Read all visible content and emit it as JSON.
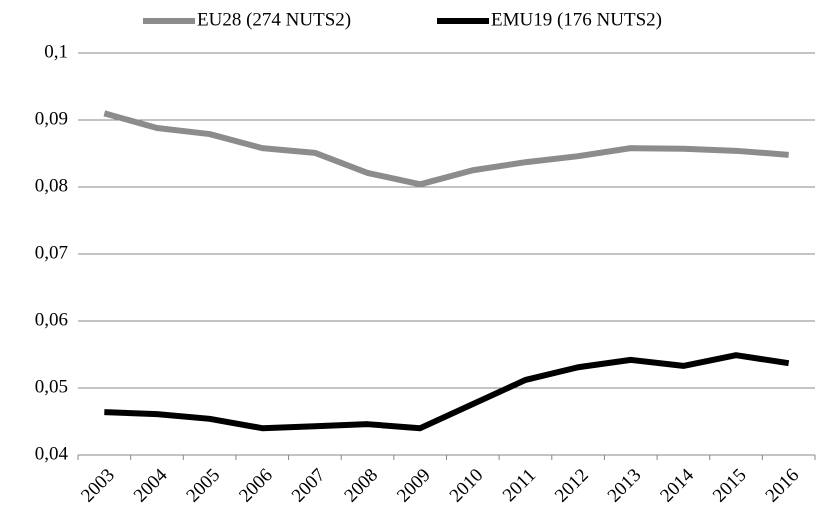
{
  "chart_data": {
    "type": "line",
    "categories": [
      "2003",
      "2004",
      "2005",
      "2006",
      "2007",
      "2008",
      "2009",
      "2010",
      "2011",
      "2012",
      "2013",
      "2014",
      "2015",
      "2016"
    ],
    "series": [
      {
        "name": "EU28 (274 NUTS2)",
        "color": "#8c8c8c",
        "values": [
          0.091,
          0.0888,
          0.0879,
          0.0858,
          0.0851,
          0.0821,
          0.0804,
          0.0825,
          0.0837,
          0.0846,
          0.0858,
          0.0857,
          0.0854,
          0.0848
        ]
      },
      {
        "name": "EMU19 (176 NUTS2)",
        "color": "#000000",
        "values": [
          0.0464,
          0.0461,
          0.0454,
          0.044,
          0.0443,
          0.0446,
          0.044,
          0.0476,
          0.0512,
          0.0531,
          0.0542,
          0.0533,
          0.0549,
          0.0537
        ]
      }
    ],
    "ylim": [
      0.04,
      0.1
    ],
    "yticks": [
      {
        "value": 0.04,
        "label": "0,04"
      },
      {
        "value": 0.05,
        "label": "0,05"
      },
      {
        "value": 0.06,
        "label": "0,06"
      },
      {
        "value": 0.07,
        "label": "0,07"
      },
      {
        "value": 0.08,
        "label": "0,08"
      },
      {
        "value": 0.09,
        "label": "0,09"
      },
      {
        "value": 0.1,
        "label": "0,1"
      }
    ],
    "grid": true,
    "legend": "top"
  }
}
